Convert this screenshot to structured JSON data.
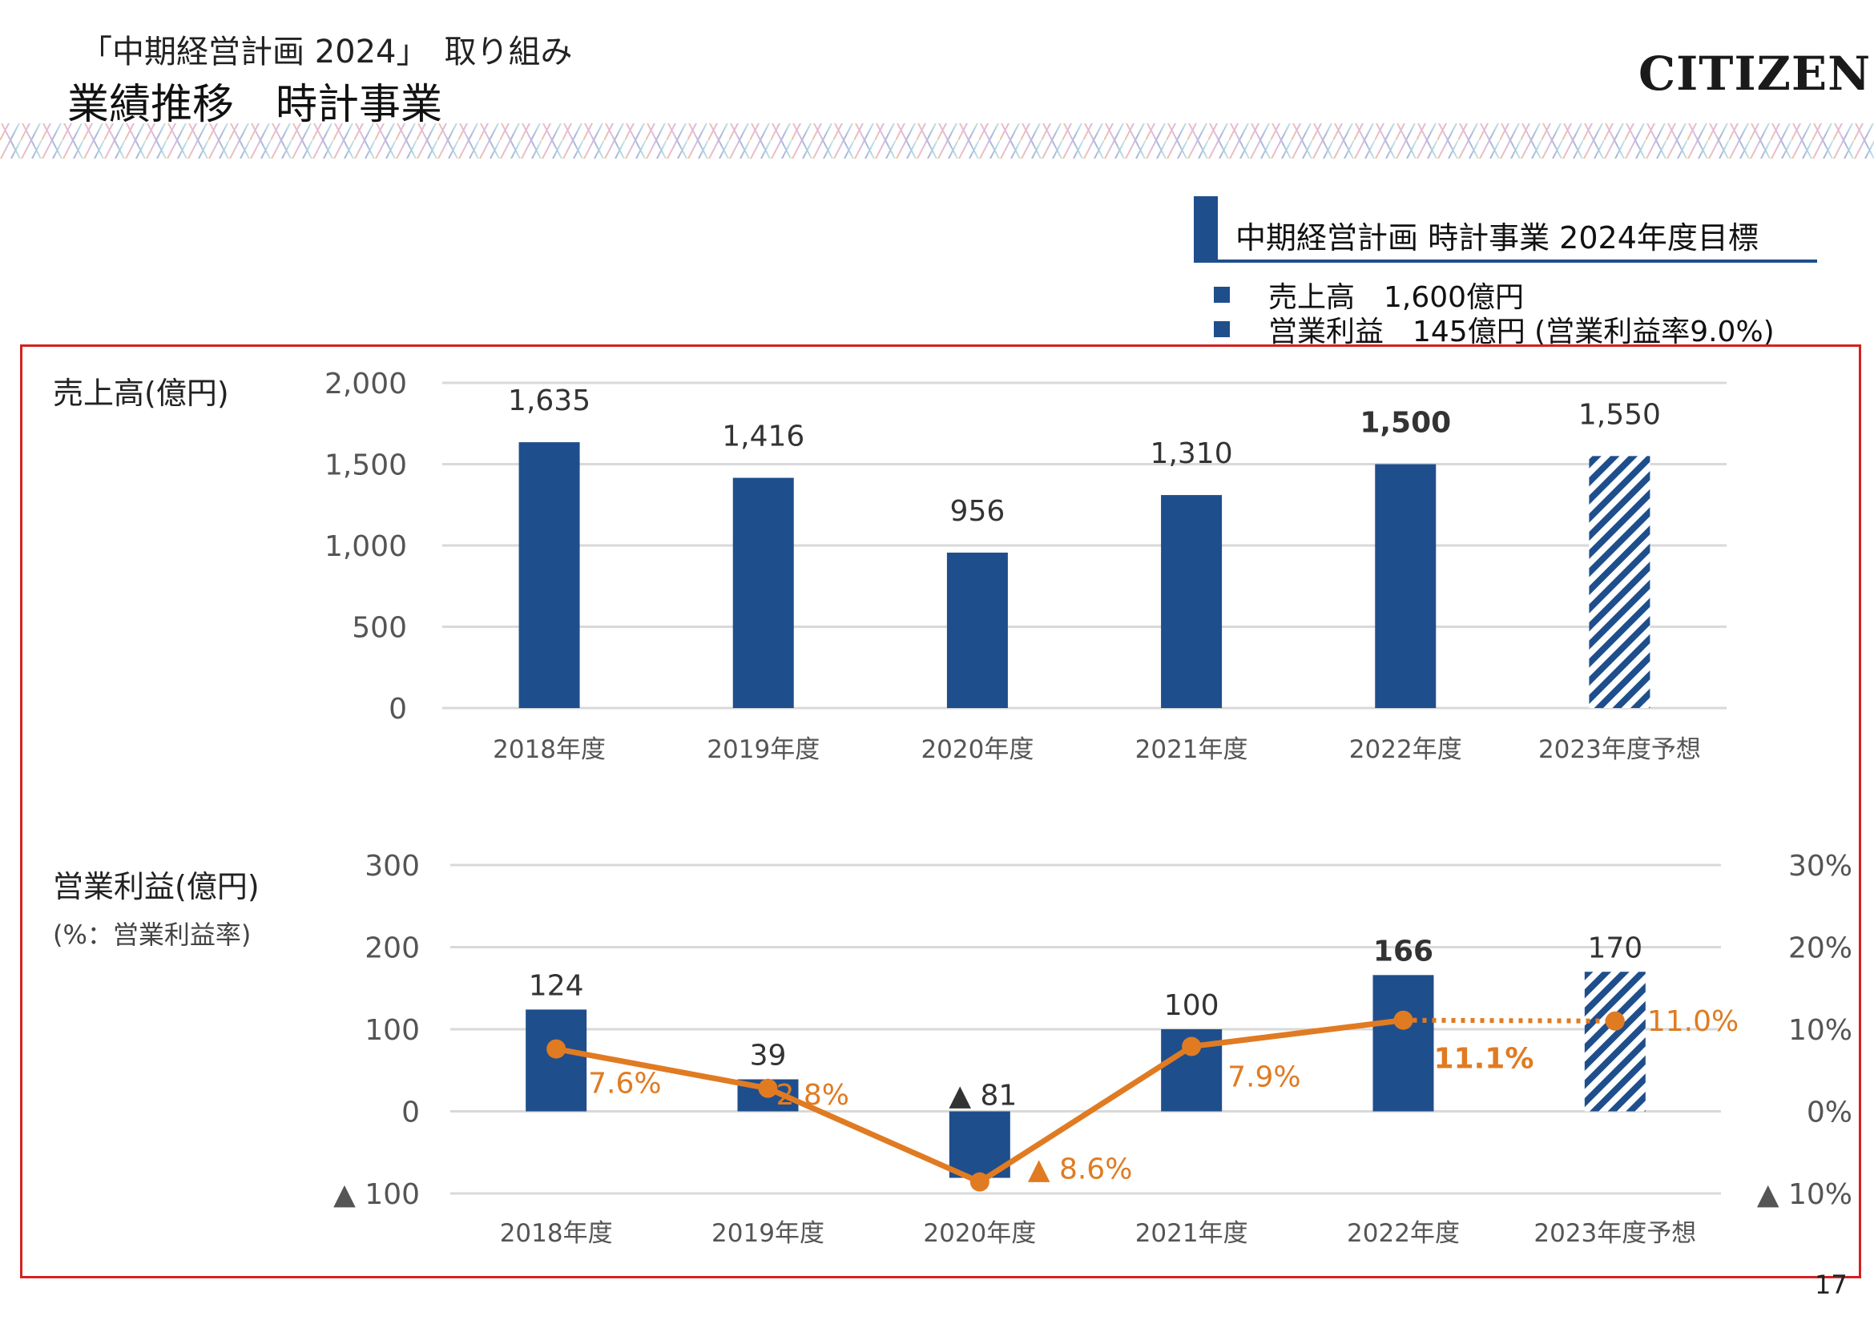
{
  "header": {
    "subtitle": "「中期経営計画 2024」　取り組み",
    "title": "業績推移　時計事業",
    "logo": "CITIZEN"
  },
  "target_box": {
    "title": "中期経営計画 時計事業 2024年度目標",
    "items": [
      {
        "label": "売上高　1,600億円"
      },
      {
        "label": "営業利益　145億円 (営業利益率9.0%)"
      }
    ]
  },
  "colors": {
    "bar": "#1f4e8c",
    "line": "#e07b22",
    "frame": "#d32121",
    "grid": "#d9d9d9",
    "tick": "#555555"
  },
  "page_number": "17",
  "chart_data": [
    {
      "type": "bar",
      "title": "売上高(億円)",
      "categories": [
        "2018年度",
        "2019年度",
        "2020年度",
        "2021年度",
        "2022年度",
        "2023年度予想"
      ],
      "values": [
        1635,
        1416,
        956,
        1310,
        1500,
        1550
      ],
      "value_labels": [
        "1,635",
        "1,416",
        "956",
        "1,310",
        "1,500",
        "1,550"
      ],
      "bold_label_index": 4,
      "forecast_index": 5,
      "ylim": [
        0,
        2000
      ],
      "yticks": [
        0,
        500,
        1000,
        1500,
        2000
      ],
      "ytick_labels": [
        "0",
        "500",
        "1,000",
        "1,500",
        "2,000"
      ],
      "grid": true
    },
    {
      "type": "bar+line",
      "title": "営業利益(億円)",
      "subtitle": "(%：営業利益率)",
      "categories": [
        "2018年度",
        "2019年度",
        "2020年度",
        "2021年度",
        "2022年度",
        "2023年度予想"
      ],
      "values": [
        124,
        39,
        -81,
        100,
        166,
        170
      ],
      "value_labels": [
        "124",
        "39",
        "▲ 81",
        "100",
        "166",
        "170"
      ],
      "bold_label_index": 4,
      "forecast_index": 5,
      "ylim": [
        -100,
        300
      ],
      "yticks": [
        -100,
        0,
        100,
        200,
        300
      ],
      "ytick_labels": [
        "▲ 100",
        "0",
        "100",
        "200",
        "300"
      ],
      "rate": [
        7.6,
        2.8,
        -8.6,
        7.9,
        11.1,
        11.0
      ],
      "rate_labels": [
        "7.6%",
        "2.8%",
        "▲ 8.6%",
        "7.9%",
        "11.1%",
        "11.0%"
      ],
      "bold_rate_index": 4,
      "y2lim": [
        -10,
        30
      ],
      "y2ticks": [
        -10,
        0,
        10,
        20,
        30
      ],
      "y2tick_labels": [
        "▲ 10%",
        "0%",
        "10%",
        "20%",
        "30%"
      ],
      "grid": true
    }
  ]
}
